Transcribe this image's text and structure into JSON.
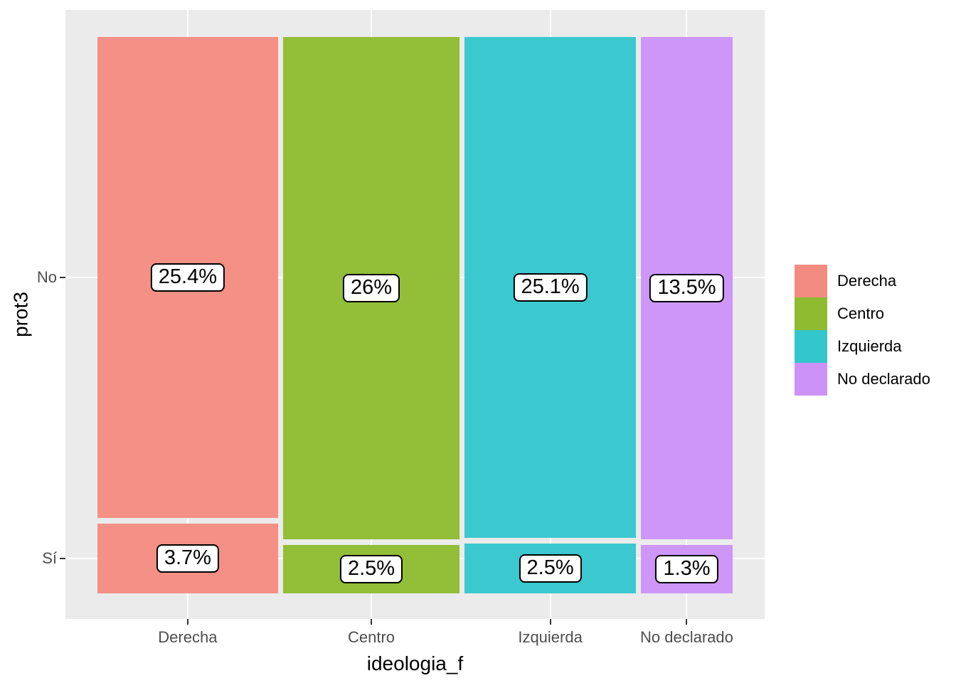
{
  "chart_data": {
    "type": "mosaic",
    "title": "",
    "xlabel": "ideologia_f",
    "ylabel": "prot3",
    "x_categories": [
      "Derecha",
      "Centro",
      "Izquierda",
      "No declarado"
    ],
    "y_categories": [
      "No",
      "Sí"
    ],
    "series": [
      {
        "name": "No",
        "values": [
          25.4,
          26,
          25.1,
          13.5
        ],
        "labels": [
          "25.4%",
          "26%",
          "25.1%",
          "13.5%"
        ]
      },
      {
        "name": "Sí",
        "values": [
          3.7,
          2.5,
          2.5,
          1.3
        ],
        "labels": [
          "3.7%",
          "2.5%",
          "2.5%",
          "1.3%"
        ]
      }
    ],
    "colors": {
      "Derecha": "#F48B81",
      "Centro": "#8EBB30",
      "Izquierda": "#33C6CD",
      "No declarado": "#CC92F8"
    },
    "axis": {
      "x_ticks": [
        "Derecha",
        "Centro",
        "Izquierda",
        "No declarado"
      ],
      "y_ticks": [
        "No",
        "Sí"
      ]
    },
    "legend": {
      "position": "right",
      "title": "",
      "entries": [
        {
          "label": "Derecha",
          "color": "#F48B81"
        },
        {
          "label": "Centro",
          "color": "#8EBB30"
        },
        {
          "label": "Izquierda",
          "color": "#33C6CD"
        },
        {
          "label": "No declarado",
          "color": "#CC92F8"
        }
      ]
    },
    "layout_hints": {
      "panel_background": "#EBEBEB",
      "grid_color": "#FFFFFF",
      "tick_label_color": "#4D4D4D",
      "grid": "on",
      "bar_label_style": "white box, black border"
    }
  }
}
